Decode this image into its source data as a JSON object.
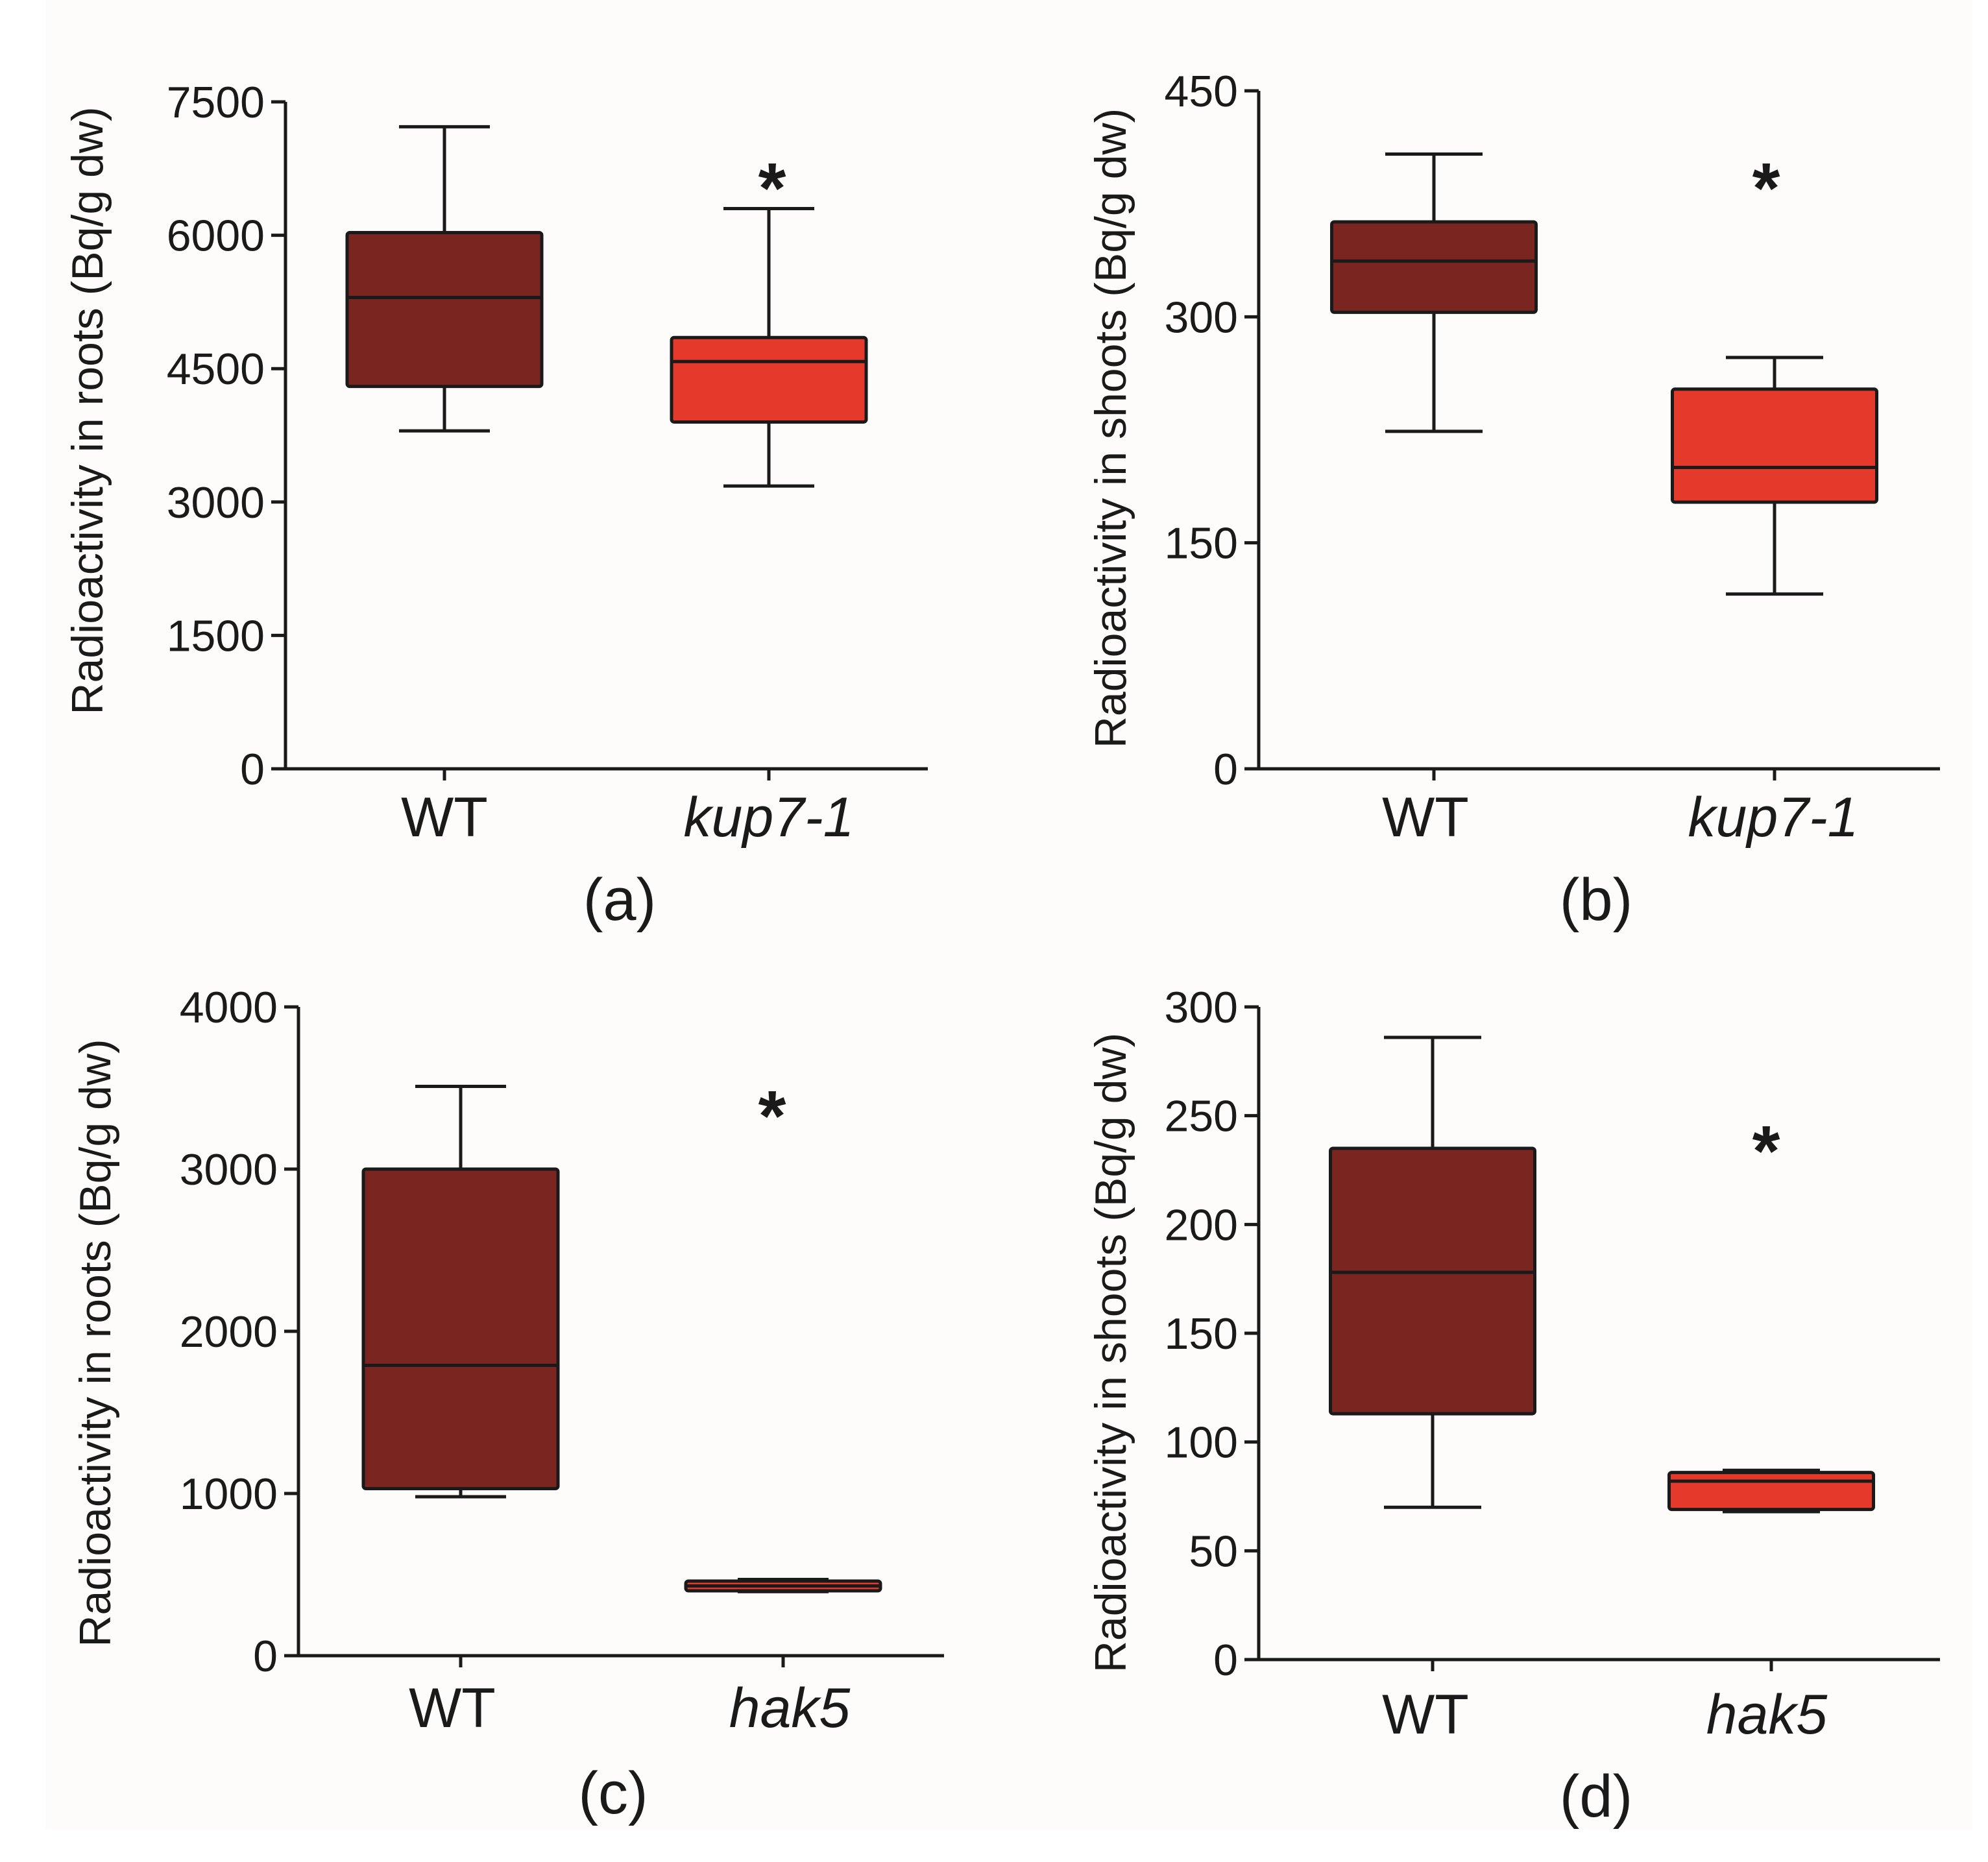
{
  "chart_data": [
    {
      "panel": "(a)",
      "type": "box",
      "ylabel": "Radioactivity in roots (Bq/g dw)",
      "ylim": [
        0,
        7500
      ],
      "yticks": [
        0,
        1500,
        3000,
        4500,
        6000,
        7500
      ],
      "categories": [
        "WT",
        "kup7-1"
      ],
      "boxes": [
        {
          "category": "WT",
          "min": 3800,
          "q1": 4300,
          "median": 5300,
          "q3": 6030,
          "max": 7220,
          "color": "#7b2521",
          "significant": false
        },
        {
          "category": "kup7-1",
          "min": 3180,
          "q1": 3900,
          "median": 4580,
          "q3": 4850,
          "max": 6300,
          "color": "#e4392b",
          "significant": true
        }
      ],
      "annotation": "*"
    },
    {
      "panel": "(b)",
      "type": "box",
      "ylabel": "Radioactivity in shoots (Bq/g dw)",
      "ylim": [
        0,
        450
      ],
      "yticks": [
        0,
        150,
        300,
        450
      ],
      "categories": [
        "WT",
        "kup7-1"
      ],
      "boxes": [
        {
          "category": "WT",
          "min": 224,
          "q1": 303,
          "median": 337,
          "q3": 363,
          "max": 408,
          "color": "#7b2521",
          "significant": false
        },
        {
          "category": "kup7-1",
          "min": 116,
          "q1": 177,
          "median": 200,
          "q3": 252,
          "max": 273,
          "color": "#e4392b",
          "significant": true
        }
      ],
      "annotation": "*"
    },
    {
      "panel": "(c)",
      "type": "box",
      "ylabel": "Radioactivity in roots (Bq/g dw)",
      "ylim": [
        0,
        4000
      ],
      "yticks": [
        0,
        1000,
        2000,
        3000,
        4000
      ],
      "categories": [
        "WT",
        "hak5"
      ],
      "boxes": [
        {
          "category": "WT",
          "min": 980,
          "q1": 1030,
          "median": 1790,
          "q3": 3000,
          "max": 3510,
          "color": "#7b2521",
          "significant": false
        },
        {
          "category": "hak5",
          "min": 395,
          "q1": 400,
          "median": 430,
          "q3": 460,
          "max": 470,
          "color": "#e4392b",
          "significant": true
        }
      ],
      "annotation": "*"
    },
    {
      "panel": "(d)",
      "type": "box",
      "ylabel": "Radioactivity in shoots (Bq/g dw)",
      "ylim": [
        0,
        300
      ],
      "yticks": [
        0,
        50,
        100,
        150,
        200,
        250,
        300
      ],
      "categories": [
        "WT",
        "hak5"
      ],
      "boxes": [
        {
          "category": "WT",
          "min": 70,
          "q1": 113,
          "median": 178,
          "q3": 235,
          "max": 286,
          "color": "#7b2521",
          "significant": false
        },
        {
          "category": "hak5",
          "min": 68,
          "q1": 69,
          "median": 82,
          "q3": 86,
          "max": 87,
          "color": "#e4392b",
          "significant": true
        }
      ],
      "annotation": "*"
    }
  ]
}
